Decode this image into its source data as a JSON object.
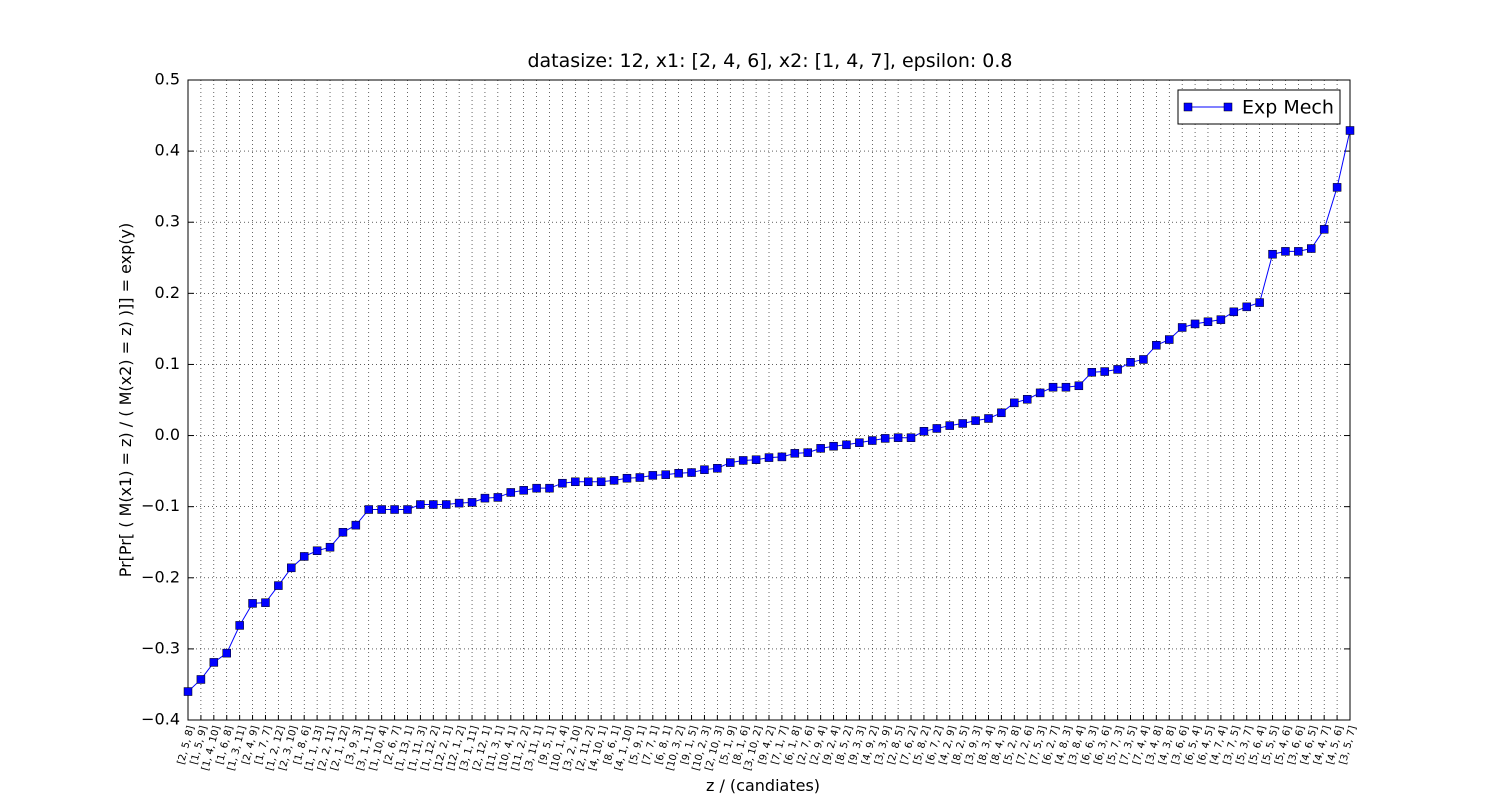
{
  "chart_data": {
    "type": "line",
    "title": "datasize: 12, x1: [2, 4, 6], x2: [1, 4, 7], epsilon: 0.8",
    "xlabel": "z / (candiates)",
    "ylabel": "Pr[Pr[ ( M(x1) = z) / ( M(x2) = z) )]] = exp(y)",
    "categories": [
      "[2, 5, 8]",
      "[1, 5, 9]",
      "[1, 4, 10]",
      "[1, 6, 8]",
      "[1, 3, 11]",
      "[2, 4, 9]",
      "[1, 7, 7]",
      "[1, 2, 12]",
      "[2, 3, 10]",
      "[1, 8, 6]",
      "[1, 1, 13]",
      "[2, 2, 11]",
      "[2, 1, 12]",
      "[3, 9, 3]",
      "[3, 1, 11]",
      "[1, 10, 4]",
      "[2, 6, 7]",
      "[1, 13, 1]",
      "[1, 11, 3]",
      "[1, 12, 2]",
      "[12, 2, 1]",
      "[12, 1, 2]",
      "[3, 1, 11]",
      "[2, 12, 1]",
      "[11, 3, 1]",
      "[10, 4, 1]",
      "[11, 2, 2]",
      "[3, 11, 1]",
      "[9, 5, 1]",
      "[10, 1, 4]",
      "[3, 2, 10]",
      "[2, 11, 2]",
      "[4, 10, 1]",
      "[8, 6, 1]",
      "[4, 1, 10]",
      "[5, 9, 1]",
      "[7, 7, 1]",
      "[6, 8, 1]",
      "[10, 3, 2]",
      "[9, 1, 5]",
      "[10, 2, 3]",
      "[2, 10, 3]",
      "[5, 1, 9]",
      "[8, 1, 6]",
      "[3, 10, 2]",
      "[9, 4, 2]",
      "[7, 1, 7]",
      "[6, 1, 8]",
      "[2, 7, 6]",
      "[2, 9, 4]",
      "[9, 2, 4]",
      "[8, 5, 2]",
      "[9, 3, 3]",
      "[4, 9, 2]",
      "[3, 3, 9]",
      "[2, 8, 5]",
      "[7, 6, 2]",
      "[5, 8, 2]",
      "[6, 7, 2]",
      "[4, 2, 9]",
      "[8, 2, 5]",
      "[3, 9, 3]",
      "[8, 3, 4]",
      "[8, 4, 3]",
      "[5, 2, 8]",
      "[7, 2, 6]",
      "[7, 5, 3]",
      "[6, 2, 7]",
      "[4, 8, 3]",
      "[3, 8, 4]",
      "[6, 6, 3]",
      "[6, 3, 6]",
      "[5, 7, 3]",
      "[7, 3, 5]",
      "[7, 4, 4]",
      "[3, 4, 8]",
      "[4, 3, 8]",
      "[3, 6, 6]",
      "[6, 5, 4]",
      "[6, 4, 5]",
      "[4, 7, 4]",
      "[3, 7, 5]",
      "[5, 3, 7]",
      "[5, 6, 4]",
      "[5, 5, 5]",
      "[5, 4, 6]",
      "[3, 6, 6]",
      "[4, 6, 5]",
      "[4, 4, 7]",
      "[4, 5, 6]",
      "[3, 5, 7]"
    ],
    "series": [
      {
        "name": "Exp Mech",
        "color": "#0000ff",
        "values": [
          -0.36,
          -0.343,
          -0.319,
          -0.306,
          -0.267,
          -0.236,
          -0.235,
          -0.211,
          -0.186,
          -0.17,
          -0.162,
          -0.157,
          -0.136,
          -0.126,
          -0.104,
          -0.104,
          -0.104,
          -0.104,
          -0.097,
          -0.097,
          -0.097,
          -0.095,
          -0.094,
          -0.088,
          -0.087,
          -0.08,
          -0.077,
          -0.074,
          -0.074,
          -0.067,
          -0.065,
          -0.065,
          -0.065,
          -0.063,
          -0.06,
          -0.059,
          -0.056,
          -0.055,
          -0.053,
          -0.052,
          -0.048,
          -0.046,
          -0.038,
          -0.035,
          -0.034,
          -0.031,
          -0.03,
          -0.025,
          -0.024,
          -0.018,
          -0.015,
          -0.013,
          -0.01,
          -0.007,
          -0.004,
          -0.003,
          -0.003,
          0.006,
          0.01,
          0.014,
          0.017,
          0.021,
          0.024,
          0.032,
          0.046,
          0.051,
          0.06,
          0.068,
          0.068,
          0.07,
          0.089,
          0.09,
          0.093,
          0.103,
          0.107,
          0.127,
          0.135,
          0.152,
          0.157,
          0.16,
          0.163,
          0.174,
          0.181,
          0.187,
          0.255,
          0.259,
          0.259,
          0.263,
          0.29,
          0.349,
          0.429
        ]
      }
    ],
    "ylim": [
      -0.4,
      0.5
    ],
    "yticks": [
      {
        "value": -0.4,
        "label": "−0.4"
      },
      {
        "value": -0.3,
        "label": "−0.3"
      },
      {
        "value": -0.2,
        "label": "−0.2"
      },
      {
        "value": -0.1,
        "label": "−0.1"
      },
      {
        "value": 0,
        "label": "0.0"
      },
      0.1,
      0.2,
      0.3,
      0.4,
      0.5
    ],
    "grid": true,
    "legend": "upper right",
    "marker": "square"
  }
}
